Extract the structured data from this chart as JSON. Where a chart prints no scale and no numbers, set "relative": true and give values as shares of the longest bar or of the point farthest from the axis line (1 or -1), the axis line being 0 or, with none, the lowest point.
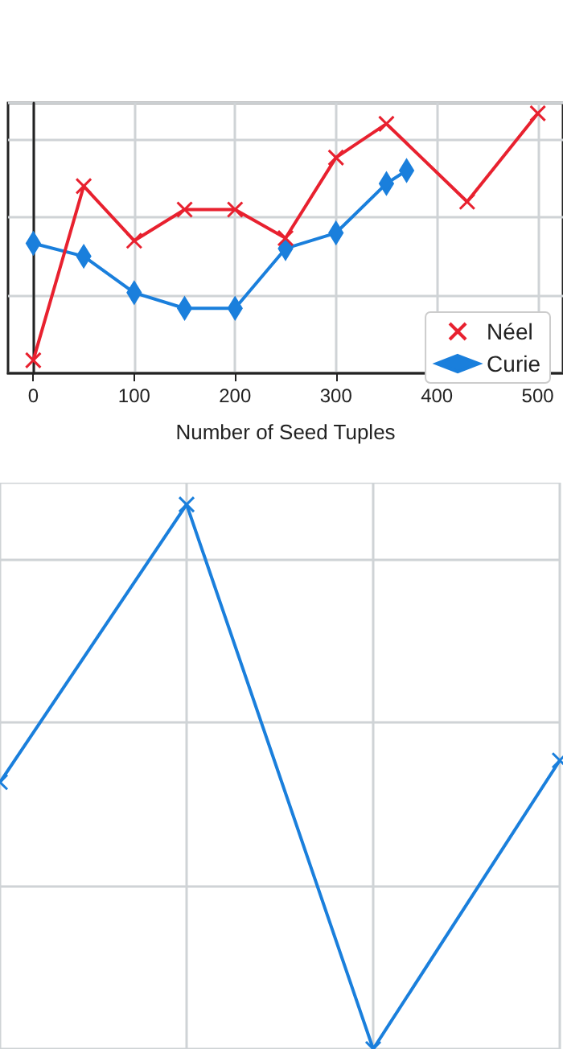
{
  "chart_data": [
    {
      "type": "line",
      "xlabel": "Number of Seed Tuples",
      "relative": true,
      "xlim": [
        -25,
        525
      ],
      "xticks": [
        0,
        100,
        200,
        300,
        400,
        500
      ],
      "grid": true,
      "legend": "bottom right",
      "tick_labels": "x",
      "series": [
        {
          "name": "Néel",
          "color": "#e8212f",
          "marker": "cross",
          "x": [
            0,
            50,
            100,
            150,
            200,
            250,
            300,
            350,
            430,
            500
          ],
          "values": [
            0.05,
            0.72,
            0.51,
            0.63,
            0.63,
            0.52,
            0.83,
            0.96,
            0.66,
            1
          ]
        },
        {
          "name": "Curie",
          "color": "#1a7fdc",
          "marker": "diamond",
          "x": [
            0,
            50,
            100,
            150,
            200,
            250,
            300,
            350,
            370
          ],
          "values": [
            0.5,
            0.45,
            0.31,
            0.25,
            0.25,
            0.48,
            0.54,
            0.73,
            0.78
          ]
        }
      ]
    },
    {
      "type": "line",
      "relative": true,
      "categories": [
        null,
        null,
        null,
        null
      ],
      "grid": true,
      "tick_labels": false,
      "marker": "cross",
      "series": [
        {
          "color": "#1a7fdc",
          "values": [
            0.49,
            1,
            0,
            0.53
          ]
        }
      ]
    }
  ]
}
